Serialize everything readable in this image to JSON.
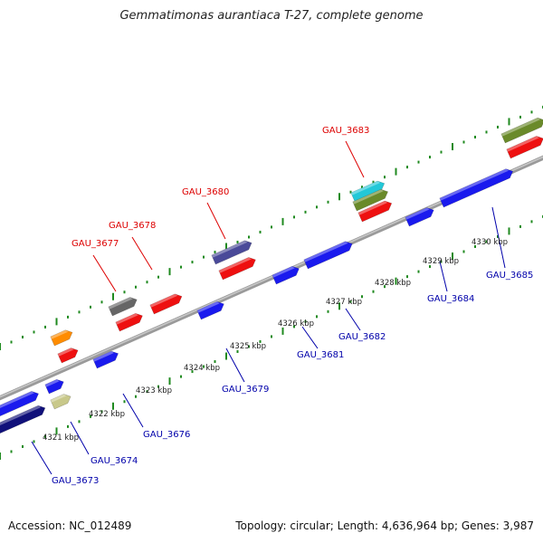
{
  "title": "Gemmatimonas aurantiaca T-27, complete genome",
  "footer": {
    "accession": "Accession: NC_012489",
    "stats": "Topology: circular; Length: 4,636,964 bp; Genes: 3,987"
  },
  "colors": {
    "backbone": "#8a8a8a",
    "tick": "#1f8a1f",
    "label_top": "#dd0000",
    "label_bottom": "#0000aa"
  },
  "kbp_labels": [
    "4321 kbp",
    "4322 kbp",
    "4323 kbp",
    "4324 kbp",
    "4325 kbp",
    "4326 kbp",
    "4327 kbp",
    "4328 kbp",
    "4329 kbp",
    "4330 kbp"
  ],
  "gene_labels": [
    {
      "text": "GAU_3673",
      "side": "bottom"
    },
    {
      "text": "GAU_3674",
      "side": "bottom"
    },
    {
      "text": "GAU_3676",
      "side": "bottom"
    },
    {
      "text": "GAU_3677",
      "side": "top"
    },
    {
      "text": "GAU_3678",
      "side": "top"
    },
    {
      "text": "GAU_3679",
      "side": "bottom"
    },
    {
      "text": "GAU_3680",
      "side": "top"
    },
    {
      "text": "GAU_3681",
      "side": "bottom"
    },
    {
      "text": "GAU_3682",
      "side": "bottom"
    },
    {
      "text": "GAU_3683",
      "side": "top"
    },
    {
      "text": "GAU_3684",
      "side": "bottom"
    },
    {
      "text": "GAU_3685",
      "side": "bottom"
    }
  ]
}
